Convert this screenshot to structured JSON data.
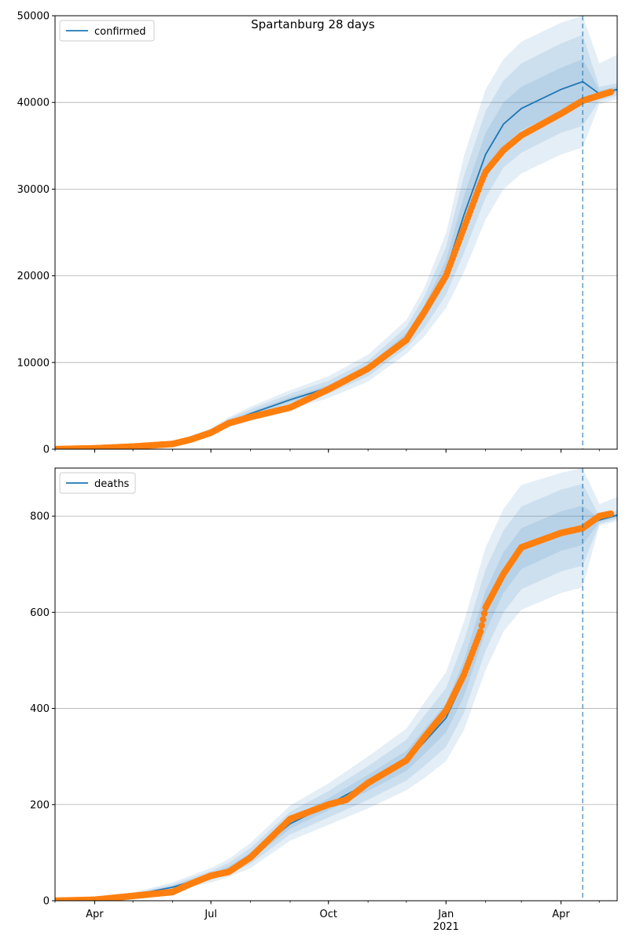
{
  "chart_data": {
    "title": "Spartanburg 28 days",
    "colors": {
      "model": "#1f77b4",
      "band": "#1f77b4",
      "observed": "#ff7f0e",
      "grid": "#b0b0b0",
      "vline": "#1f77b4"
    },
    "x_axis": {
      "type": "date",
      "range": [
        "2020-03-01",
        "2021-05-15"
      ],
      "tick_labels": [
        {
          "date": "2020-04-01",
          "label": "Apr"
        },
        {
          "date": "2020-07-01",
          "label": "Jul"
        },
        {
          "date": "2020-10-01",
          "label": "Oct"
        },
        {
          "date": "2021-01-01",
          "label": "Jan"
        },
        {
          "date": "2021-04-01",
          "label": "Apr"
        }
      ],
      "year_label": {
        "date": "2021-01-01",
        "label": "2021"
      },
      "forecast_start": "2021-04-18"
    },
    "panels": [
      {
        "type": "line",
        "legend": {
          "label": "confirmed",
          "loc": "upper left"
        },
        "ylim": [
          0,
          50000
        ],
        "yticks": [
          0,
          10000,
          20000,
          30000,
          40000,
          50000
        ],
        "grid": true,
        "model": {
          "x": [
            "2020-03-01",
            "2020-04-01",
            "2020-05-01",
            "2020-06-01",
            "2020-07-01",
            "2020-07-15",
            "2020-08-01",
            "2020-09-01",
            "2020-10-01",
            "2020-11-01",
            "2020-12-01",
            "2020-12-15",
            "2021-01-01",
            "2021-01-15",
            "2021-02-01",
            "2021-02-15",
            "2021-03-01",
            "2021-04-01",
            "2021-04-18",
            "2021-05-01",
            "2021-05-15"
          ],
          "y": [
            0,
            120,
            350,
            700,
            2000,
            3100,
            4100,
            5700,
            7100,
            9300,
            12900,
            15800,
            20500,
            27000,
            34000,
            37500,
            39300,
            41500,
            42400,
            41000,
            41500
          ],
          "lo50": [
            0,
            110,
            330,
            660,
            1900,
            2900,
            3900,
            5400,
            6800,
            8900,
            12400,
            15000,
            19200,
            24800,
            31500,
            35000,
            36800,
            39000,
            39800,
            40600,
            41200
          ],
          "hi50": [
            0,
            130,
            370,
            740,
            2100,
            3300,
            4300,
            6000,
            7400,
            9700,
            13400,
            16600,
            21800,
            29200,
            36500,
            40000,
            41800,
            44000,
            45000,
            41400,
            41800
          ],
          "lo80": [
            0,
            100,
            300,
            620,
            1800,
            2700,
            3600,
            5000,
            6400,
            8400,
            11700,
            14000,
            17800,
            22600,
            29000,
            32500,
            34200,
            36500,
            37300,
            40200,
            40800
          ],
          "hi80": [
            0,
            140,
            400,
            780,
            2250,
            3500,
            4600,
            6400,
            7900,
            10200,
            14100,
            17600,
            23300,
            31500,
            39000,
            42500,
            44500,
            46800,
            47800,
            41800,
            42200
          ],
          "lo95": [
            0,
            90,
            270,
            580,
            1700,
            2500,
            3300,
            4600,
            5900,
            7800,
            11000,
            13000,
            16300,
            20400,
            26500,
            30000,
            31800,
            34000,
            34800,
            39800,
            40400
          ],
          "hi95": [
            0,
            150,
            430,
            830,
            2400,
            3700,
            4900,
            6800,
            8400,
            10900,
            14900,
            18600,
            24900,
            33800,
            41500,
            45000,
            47000,
            49200,
            50000,
            44500,
            45500
          ]
        },
        "observed": {
          "x": [
            "2020-03-01",
            "2020-04-01",
            "2020-05-01",
            "2020-06-01",
            "2020-06-15",
            "2020-07-01",
            "2020-07-15",
            "2020-08-01",
            "2020-09-01",
            "2020-10-01",
            "2020-11-01",
            "2020-12-01",
            "2020-12-15",
            "2021-01-01",
            "2021-01-15",
            "2021-01-28",
            "2021-02-01",
            "2021-02-15",
            "2021-03-01",
            "2021-04-01",
            "2021-04-18",
            "2021-05-01",
            "2021-05-10"
          ],
          "y": [
            0,
            100,
            300,
            600,
            1100,
            1900,
            3000,
            3700,
            4800,
            6900,
            9300,
            12600,
            15800,
            20000,
            25500,
            30600,
            32000,
            34500,
            36200,
            38700,
            40200,
            40800,
            41200
          ]
        }
      },
      {
        "type": "line",
        "legend": {
          "label": "deaths",
          "loc": "upper left"
        },
        "ylim": [
          0,
          900
        ],
        "yticks": [
          0,
          200,
          400,
          600,
          800
        ],
        "grid": true,
        "model": {
          "x": [
            "2020-03-01",
            "2020-04-01",
            "2020-05-01",
            "2020-06-01",
            "2020-07-01",
            "2020-07-15",
            "2020-08-01",
            "2020-09-01",
            "2020-10-01",
            "2020-11-01",
            "2020-12-01",
            "2020-12-15",
            "2021-01-01",
            "2021-01-15",
            "2021-02-01",
            "2021-02-15",
            "2021-03-01",
            "2021-04-01",
            "2021-04-18",
            "2021-05-01",
            "2021-05-15"
          ],
          "y": [
            0,
            3,
            12,
            28,
            52,
            66,
            92,
            160,
            200,
            245,
            290,
            330,
            380,
            460,
            600,
            680,
            730,
            765,
            778,
            792,
            802
          ],
          "lo50": [
            0,
            3,
            11,
            26,
            48,
            61,
            85,
            150,
            188,
            228,
            270,
            305,
            350,
            425,
            560,
            640,
            690,
            728,
            740,
            788,
            798
          ],
          "hi50": [
            0,
            4,
            13,
            31,
            57,
            72,
            100,
            172,
            213,
            262,
            312,
            357,
            410,
            500,
            645,
            725,
            775,
            810,
            822,
            796,
            806
          ],
          "lo80": [
            0,
            2,
            10,
            23,
            43,
            55,
            77,
            138,
            173,
            210,
            250,
            280,
            320,
            390,
            520,
            600,
            648,
            685,
            697,
            784,
            794
          ],
          "hi80": [
            0,
            5,
            15,
            34,
            62,
            79,
            110,
            185,
            228,
            280,
            335,
            385,
            442,
            540,
            690,
            770,
            820,
            855,
            867,
            800,
            812
          ],
          "lo95": [
            0,
            2,
            9,
            20,
            38,
            49,
            68,
            125,
            158,
            192,
            230,
            255,
            290,
            355,
            480,
            560,
            605,
            640,
            652,
            780,
            790
          ],
          "hi95": [
            0,
            6,
            17,
            38,
            68,
            87,
            120,
            198,
            244,
            300,
            358,
            412,
            475,
            580,
            735,
            815,
            865,
            890,
            900,
            825,
            840
          ]
        },
        "observed": {
          "x": [
            "2020-03-01",
            "2020-04-01",
            "2020-05-01",
            "2020-06-01",
            "2020-06-15",
            "2020-07-01",
            "2020-07-15",
            "2020-08-01",
            "2020-09-01",
            "2020-10-01",
            "2020-10-15",
            "2020-11-01",
            "2020-12-01",
            "2020-12-15",
            "2021-01-01",
            "2021-01-15",
            "2021-01-28",
            "2021-02-01",
            "2021-02-15",
            "2021-03-01",
            "2021-04-01",
            "2021-04-18",
            "2021-05-01",
            "2021-05-10"
          ],
          "y": [
            0,
            2,
            10,
            18,
            35,
            52,
            60,
            90,
            170,
            200,
            210,
            245,
            292,
            340,
            395,
            470,
            560,
            610,
            680,
            735,
            765,
            775,
            800,
            805
          ]
        }
      }
    ]
  }
}
